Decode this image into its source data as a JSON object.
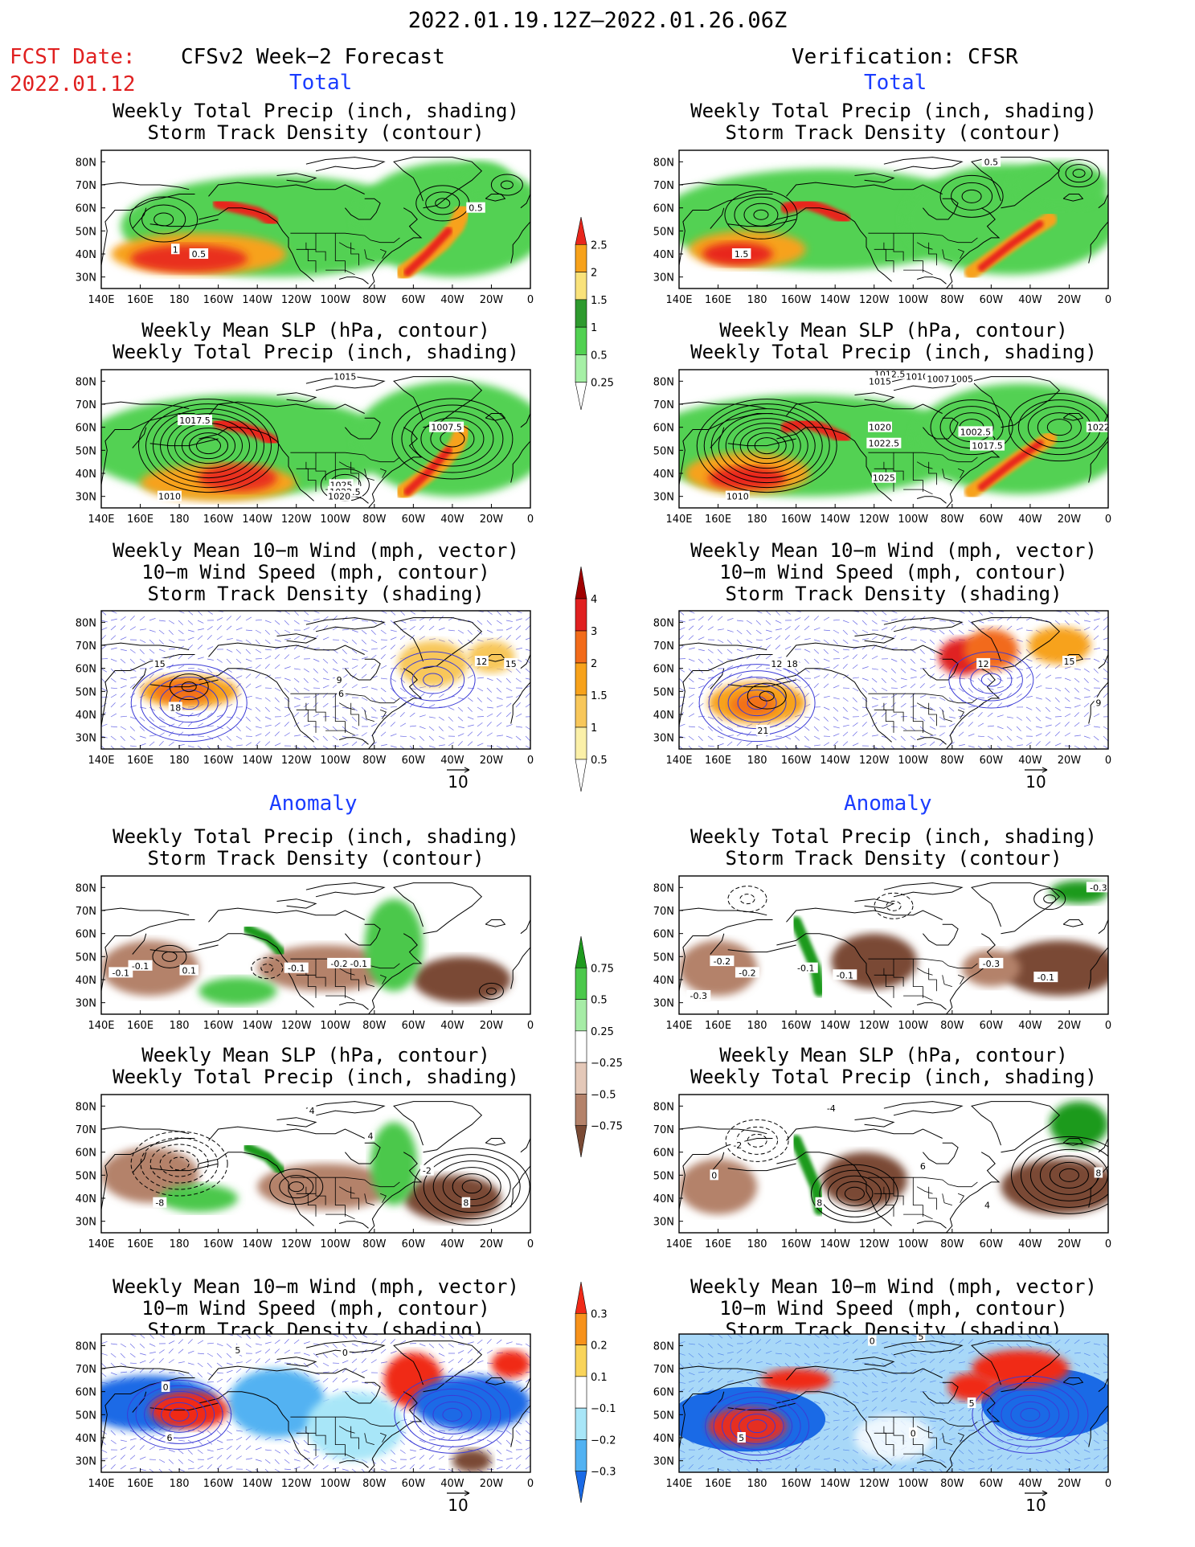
{
  "header": {
    "title": "2022.01.19.12Z–2022.01.26.06Z",
    "fcst_label": "FCST Date:",
    "fcst_date": "2022.01.12",
    "left_title": "CFSv2 Week−2 Forecast",
    "right_title": "Verification: CFSR"
  },
  "sections": {
    "total": "Total",
    "anomaly": "Anomaly"
  },
  "panel_titles": {
    "precip_track": [
      "Weekly Total Precip (inch, shading)",
      "Storm Track Density (contour)"
    ],
    "slp_precip": [
      "Weekly Mean SLP (hPa, contour)",
      "Weekly Total Precip (inch, shading)"
    ],
    "wind_track": [
      "Weekly Mean 10−m Wind (mph, vector)",
      "10−m Wind Speed (mph, contour)",
      "Storm Track Density (shading)"
    ]
  },
  "axes": {
    "lat_labels": [
      "80N",
      "70N",
      "60N",
      "50N",
      "40N",
      "30N"
    ],
    "lon_labels": [
      "140E",
      "160E",
      "180",
      "160W",
      "140W",
      "120W",
      "100W",
      "80W",
      "60W",
      "40W",
      "20W",
      "0"
    ]
  },
  "vector_ref": "10",
  "colorbars": {
    "precip_total": {
      "labels": [
        "2.5",
        "2",
        "1.5",
        "1",
        "0.5",
        "0.25"
      ],
      "colors": [
        "#e8261c",
        "#f7a21b",
        "#f9e27a",
        "#2e9a2e",
        "#52d152",
        "#a6f0a6",
        "#ffffff"
      ]
    },
    "track_total": {
      "labels": [
        "4",
        "3",
        "2",
        "1.5",
        "1",
        "0.5"
      ],
      "colors": [
        "#a00000",
        "#e02020",
        "#f26b1a",
        "#f7a21b",
        "#f8c75a",
        "#fbf0a8",
        "#ffffff"
      ]
    },
    "precip_anom": {
      "labels": [
        "0.75",
        "0.5",
        "0.25",
        "−0.25",
        "−0.5",
        "−0.75"
      ],
      "colors": [
        "#1e9a1e",
        "#4cc84c",
        "#a6eca6",
        "#ffffff",
        "#e4c8b8",
        "#b4826a",
        "#7a4a34"
      ]
    },
    "track_anom": {
      "labels": [
        "0.3",
        "0.2",
        "0.1",
        "−0.1",
        "−0.2",
        "−0.3"
      ],
      "colors": [
        "#f02a18",
        "#f7921b",
        "#f9d45a",
        "#ffffff",
        "#a8e6f8",
        "#52b2f2",
        "#1a6ae6"
      ]
    }
  },
  "panel_labels": {
    "r1l": [
      "1",
      "0.5",
      "0.5"
    ],
    "r1r": [
      "1.5",
      "0.5"
    ],
    "r2l": [
      "1017.5",
      "1015",
      "1007.5",
      "1025",
      "1022.5",
      "1020",
      "1010"
    ],
    "r2r": [
      "1012.5",
      "1010",
      "1007.5",
      "1005",
      "1015",
      "1020",
      "1002.5",
      "1017.5",
      "1022.5",
      "1025",
      "1022",
      "1010"
    ],
    "r3l": [
      "15",
      "18",
      "12",
      "15",
      "9",
      "6"
    ],
    "r3r": [
      "12",
      "18",
      "21",
      "12",
      "15",
      "9"
    ],
    "r4l": [
      "-0.1",
      "-0.1",
      "-0.1",
      "-0.2",
      "-0.1",
      "0.1"
    ],
    "r4r": [
      "-0.3",
      "-0.2",
      "-0.2",
      "-0.1",
      "-0.1",
      "-0.3",
      "-0.1",
      "-0.3"
    ],
    "r5l": [
      "4",
      "4",
      "-2",
      "8",
      "-8"
    ],
    "r5r": [
      "-4",
      "-2",
      "0",
      "8",
      "6",
      "4",
      "8"
    ],
    "r6l": [
      "0",
      "6",
      "5",
      "0"
    ],
    "r6r": [
      "0",
      "5",
      "5",
      "5",
      "0"
    ]
  }
}
